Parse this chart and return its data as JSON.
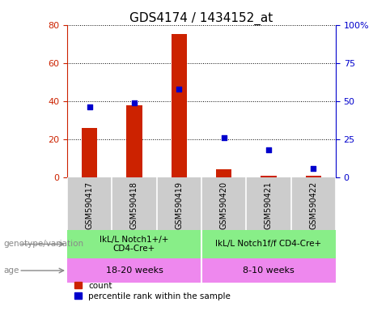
{
  "title": "GDS4174 / 1434152_at",
  "samples": [
    "GSM590417",
    "GSM590418",
    "GSM590419",
    "GSM590420",
    "GSM590421",
    "GSM590422"
  ],
  "counts": [
    26,
    38,
    75,
    4,
    1,
    1
  ],
  "percentile_ranks": [
    46,
    49,
    58,
    26,
    18,
    6
  ],
  "ylim_left": [
    0,
    80
  ],
  "ylim_right": [
    0,
    100
  ],
  "yticks_left": [
    0,
    20,
    40,
    60,
    80
  ],
  "yticks_right": [
    0,
    25,
    50,
    75,
    100
  ],
  "bar_color": "#cc2200",
  "scatter_color": "#0000cc",
  "genotype_groups": [
    {
      "label": "IkL/L Notch1+/+\nCD4-Cre+",
      "start": 0,
      "end": 3,
      "color": "#88ee88"
    },
    {
      "label": "IkL/L Notch1f/f CD4-Cre+",
      "start": 3,
      "end": 6,
      "color": "#88ee88"
    }
  ],
  "age_groups": [
    {
      "label": "18-20 weeks",
      "start": 0,
      "end": 3,
      "color": "#ee88ee"
    },
    {
      "label": "8-10 weeks",
      "start": 3,
      "end": 6,
      "color": "#ee88ee"
    }
  ],
  "genotype_label": "genotype/variation",
  "age_label": "age",
  "legend_count_label": "count",
  "legend_pct_label": "percentile rank within the sample",
  "bg_color": "#ffffff",
  "plot_bg_color": "#ffffff",
  "tick_label_bg": "#cccccc",
  "grid_color": "#000000",
  "title_fontsize": 11,
  "tick_fontsize": 8,
  "bar_width": 0.35
}
